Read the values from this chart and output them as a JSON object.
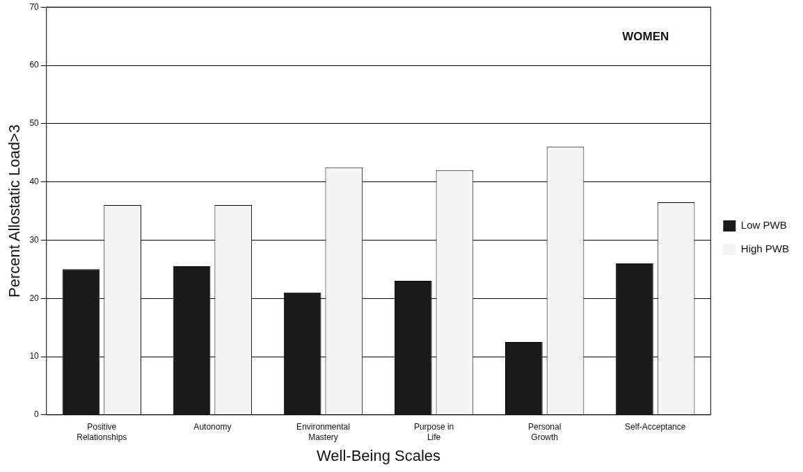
{
  "chart_data": {
    "type": "bar",
    "xlabel": "Well-Being Scales",
    "ylabel": "Percent Allostatic Load>3",
    "annotations": [
      "WOMEN"
    ],
    "categories": [
      "Positive Relationships",
      "Autonomy",
      "Environmental Mastery",
      "Purpose in Life",
      "Personal Growth",
      "Self-Acceptance"
    ],
    "series": [
      {
        "name": "Low PWB",
        "color": "#1a1a1a",
        "values": [
          25,
          25.5,
          21,
          23,
          12.5,
          26
        ]
      },
      {
        "name": "High PWB",
        "color": "#f4f4f4",
        "values": [
          36,
          36,
          42.5,
          42,
          46,
          36.5
        ]
      }
    ],
    "ylim": [
      0,
      70
    ],
    "yticks": [
      0,
      10,
      20,
      30,
      40,
      50,
      60,
      70
    ],
    "grid": "y",
    "legend": "right"
  }
}
